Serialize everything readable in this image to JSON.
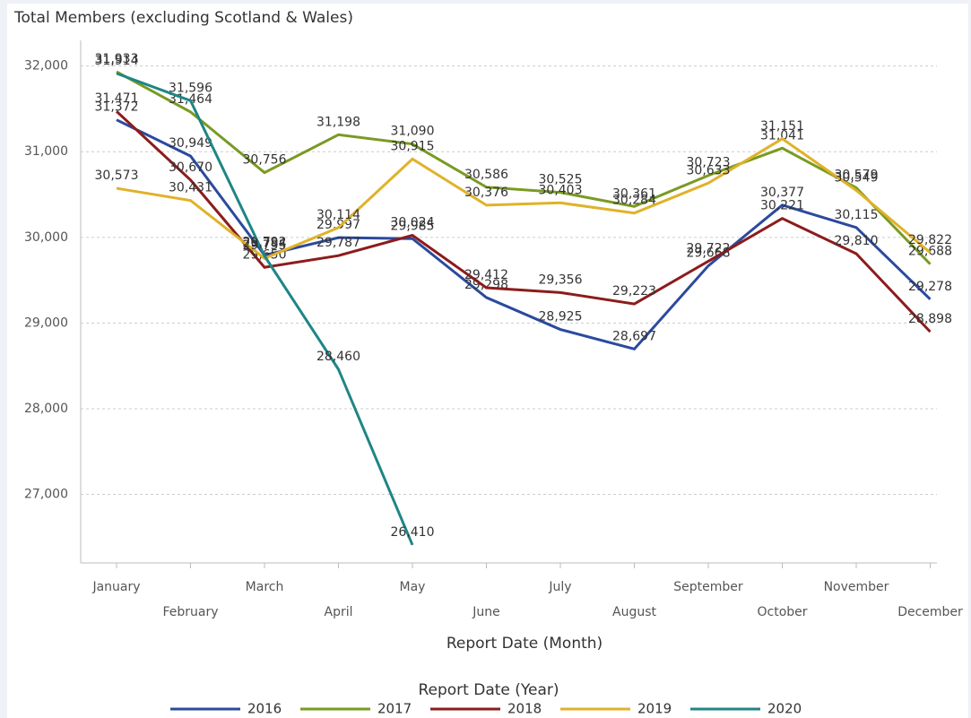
{
  "chart_data": {
    "type": "line",
    "title": "Total Members (excluding Scotland & Wales)",
    "x_label": "Report Date (Month)",
    "legend_title": "Report Date (Year)",
    "legend": "bottom",
    "grid": true,
    "categories": [
      "January",
      "February",
      "March",
      "April",
      "May",
      "June",
      "July",
      "August",
      "September",
      "October",
      "November",
      "December"
    ],
    "ylim": [
      26200,
      32300
    ],
    "yticks": [
      {
        "value": 27000,
        "label": "27,000"
      },
      {
        "value": 28000,
        "label": "28,000"
      },
      {
        "value": 29000,
        "label": "29,000"
      },
      {
        "value": 30000,
        "label": "30,000"
      },
      {
        "value": 31000,
        "label": "31,000"
      },
      {
        "value": 32000,
        "label": "32,000"
      }
    ],
    "series": [
      {
        "name": "2016",
        "color": "#2b4a9e",
        "values": [
          31372,
          30949,
          29792,
          29997,
          29985,
          29298,
          28925,
          28697,
          29668,
          30377,
          30115,
          29278
        ],
        "value_labels": [
          "31,372",
          "30,949",
          "29,792",
          "29,997",
          "29,985",
          "29,298",
          "28,925",
          "28,697",
          "29,668",
          "30,377",
          "30,115",
          "29,278"
        ]
      },
      {
        "name": "2017",
        "color": "#7a9a22",
        "values": [
          31933,
          31464,
          30756,
          31198,
          31090,
          30586,
          30525,
          30361,
          30723,
          31041,
          30579,
          29688
        ],
        "value_labels": [
          "31,933",
          "31,464",
          "30,756",
          "31,198",
          "31,090",
          "30,586",
          "30,525",
          "30,361",
          "30,723",
          "31,041",
          "30,579",
          "29,688"
        ]
      },
      {
        "name": "2018",
        "color": "#8c1c1c",
        "values": [
          31471,
          30670,
          29650,
          29787,
          30024,
          29412,
          29356,
          29223,
          29722,
          30221,
          29810,
          28898
        ],
        "value_labels": [
          "31,471",
          "30,670",
          "29,650",
          "29,787",
          "30,024",
          "29,412",
          "29,356",
          "29,223",
          "29,722",
          "30,221",
          "29,810",
          "28,898"
        ]
      },
      {
        "name": "2019",
        "color": "#e0b228",
        "values": [
          30573,
          30431,
          29755,
          30114,
          30915,
          30376,
          30403,
          30284,
          30633,
          31151,
          30549,
          29822
        ],
        "value_labels": [
          "30,573",
          "30,431",
          "29,755",
          "30,114",
          "30,915",
          "30,376",
          "30,403",
          "30,284",
          "30,633",
          "31,151",
          "30,549",
          "29,822"
        ]
      },
      {
        "name": "2020",
        "color": "#1f8585",
        "values": [
          31914,
          31596,
          29784,
          28460,
          26410,
          null,
          null,
          null,
          null,
          null,
          null,
          null
        ],
        "value_labels": [
          "31,914",
          "31,596",
          "29,784",
          "28,460",
          "26,410",
          null,
          null,
          null,
          null,
          null,
          null,
          null
        ]
      }
    ]
  }
}
